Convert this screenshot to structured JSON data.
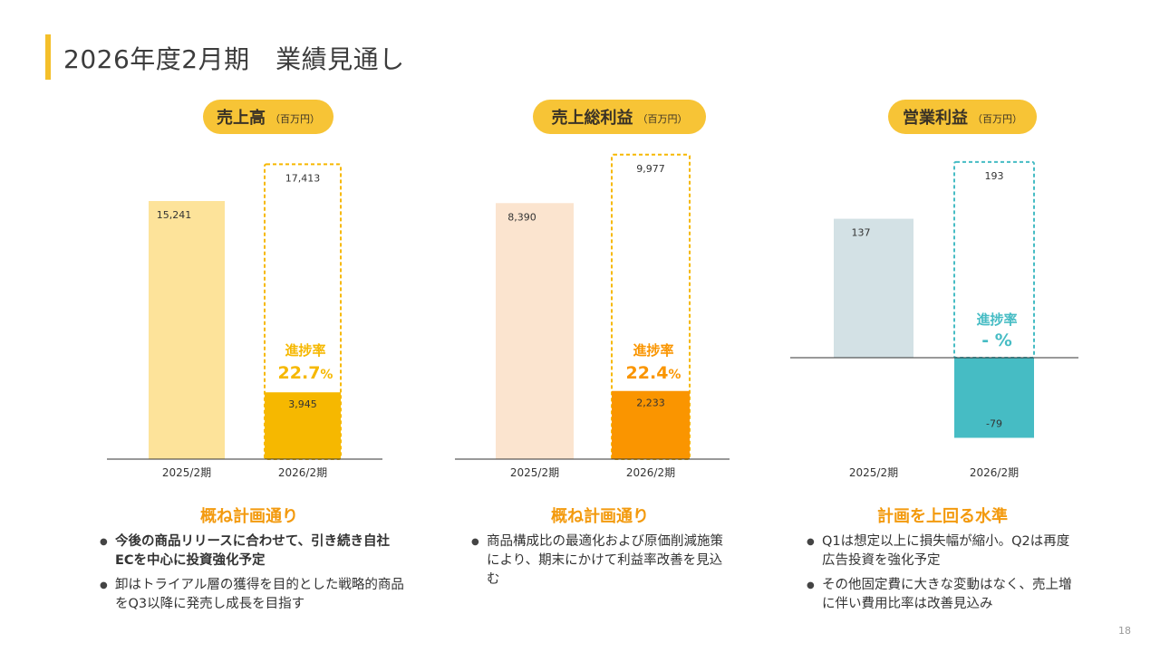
{
  "header": {
    "title": "2026年度2月期　業績見通し"
  },
  "colors": {
    "accent": "#f4bf2a",
    "heading": "#f39a0e",
    "teal": "#46bcc4",
    "sales_prev": "#fde39a",
    "sales_cur": "#f6b800",
    "gross_prev": "#fbe4cf",
    "gross_cur": "#fa9500",
    "op_prev": "#d3e1e5",
    "op_cur": "#46bcc4"
  },
  "panels": [
    {
      "title": "売上高",
      "unit": "（百万円）",
      "heading": "概ね計画通り",
      "bullets": [
        {
          "text": "今後の商品リリースに合わせて、引き続き自社ECを中心に投資強化予定",
          "bold": true
        },
        {
          "text": "卸はトライアル層の獲得を目的とした戦略的商品をQ3以降に発売し成長を目指す",
          "bold": false
        }
      ]
    },
    {
      "title": "売上総利益",
      "unit": "（百万円）",
      "heading": "概ね計画通り",
      "bullets": [
        {
          "text": "商品構成比の最適化および原価削減施策により、期末にかけて利益率改善を見込む",
          "bold": false
        }
      ]
    },
    {
      "title": "営業利益",
      "unit": "（百万円）",
      "heading": "計画を上回る水準",
      "bullets": [
        {
          "text": "Q1は想定以上に損失幅が縮小。Q2は再度広告投資を強化予定",
          "bold": false
        },
        {
          "text": "その他固定費に大きな変動はなく、売上増に伴い費用比率は改善見込み",
          "bold": false
        }
      ]
    }
  ],
  "chart_data": [
    {
      "type": "bar",
      "title": "売上高",
      "unit": "百万円",
      "categories": [
        "2025/2期",
        "2026/2期"
      ],
      "prev_value": 15241,
      "plan_value": 17413,
      "actual_value": 3945,
      "prev_label": "15,241",
      "plan_label": "17,413",
      "actual_label": "3,945",
      "progress_label": "進捗率",
      "progress_value": "22.7",
      "progress_unit": "%"
    },
    {
      "type": "bar",
      "title": "売上総利益",
      "unit": "百万円",
      "categories": [
        "2025/2期",
        "2026/2期"
      ],
      "prev_value": 8390,
      "plan_value": 9977,
      "actual_value": 2233,
      "prev_label": "8,390",
      "plan_label": "9,977",
      "actual_label": "2,233",
      "progress_label": "進捗率",
      "progress_value": "22.4",
      "progress_unit": "%"
    },
    {
      "type": "bar",
      "title": "営業利益",
      "unit": "百万円",
      "categories": [
        "2025/2期",
        "2026/2期"
      ],
      "prev_value": 137,
      "plan_value": 193,
      "actual_value": -79,
      "prev_label": "137",
      "plan_label": "193",
      "actual_label": "-79",
      "progress_label": "進捗率",
      "progress_value": "- %",
      "progress_unit": ""
    }
  ],
  "page_number": "18"
}
